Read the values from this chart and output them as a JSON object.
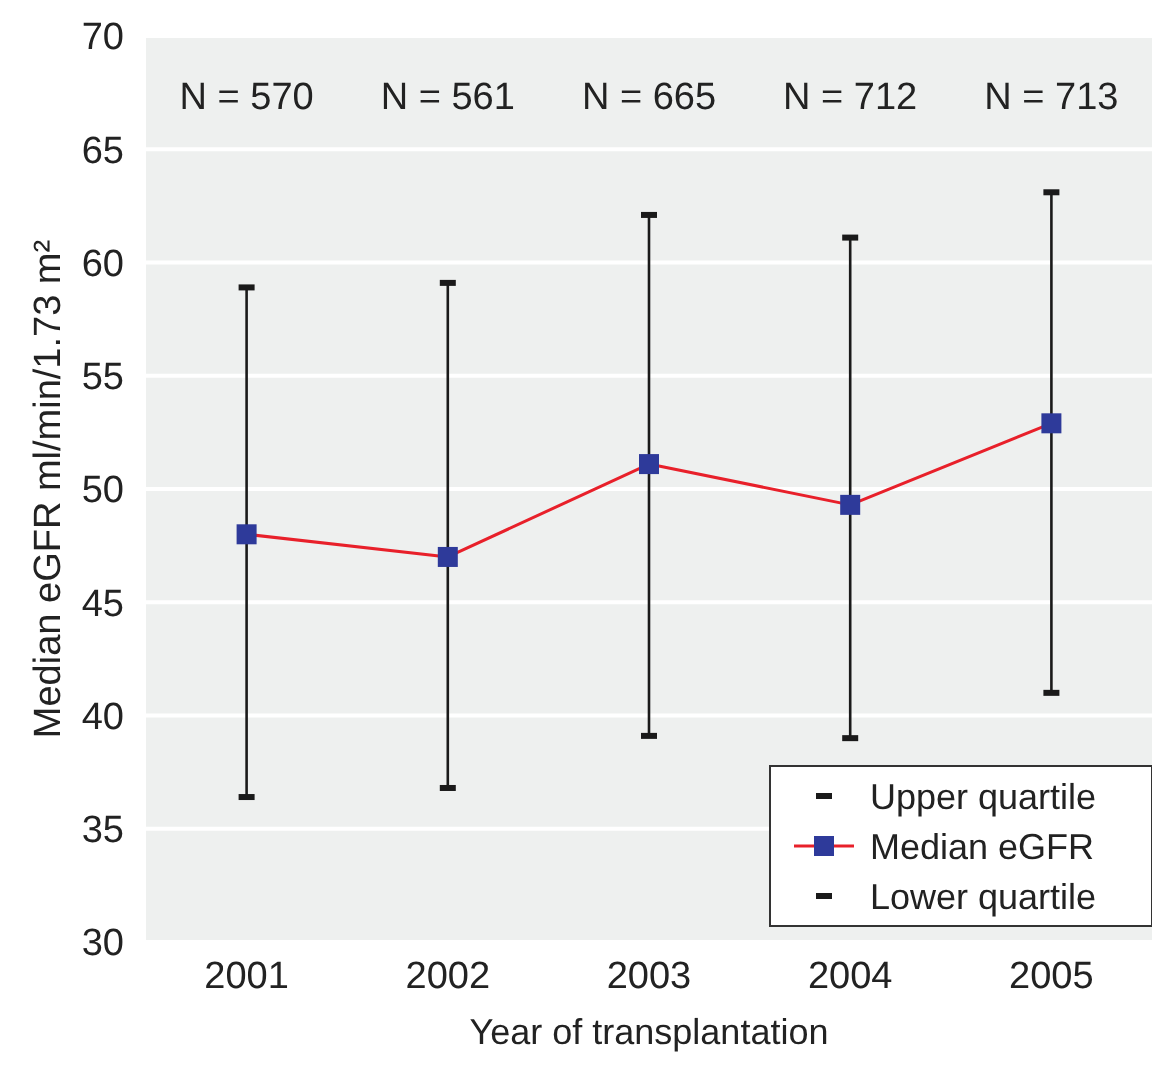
{
  "chart_data": {
    "type": "line",
    "xlabel": "Year of transplantation",
    "ylabel": "Median eGFR ml/min/1.73 m²",
    "categories": [
      "2001",
      "2002",
      "2003",
      "2004",
      "2005"
    ],
    "series": [
      {
        "name": "Upper quartile",
        "type": "scatter",
        "color": "#1a1a1a",
        "values": [
          58.9,
          59.1,
          62.1,
          61.1,
          63.1
        ]
      },
      {
        "name": "Median eGFR",
        "type": "line",
        "color": "#e8202a",
        "colors": [
          "#2e3a9a",
          "#2e3a9a",
          "#2e3a9a",
          "#2e3a9a",
          "#2e3a9a"
        ],
        "marker": "square",
        "values": [
          48.0,
          47.0,
          51.1,
          49.3,
          52.9
        ]
      },
      {
        "name": "Lower quartile",
        "type": "scatter",
        "color": "#1a1a1a",
        "values": [
          36.4,
          36.8,
          39.1,
          39.0,
          41.0
        ]
      }
    ],
    "ylim": [
      30,
      70
    ],
    "yticks": [
      30,
      35,
      40,
      45,
      50,
      55,
      60,
      65,
      70
    ],
    "grid": "y",
    "legend": "bottom right",
    "annotations": [
      "N = 570",
      "N = 561",
      "N = 665",
      "N = 712",
      "N = 713"
    ]
  }
}
